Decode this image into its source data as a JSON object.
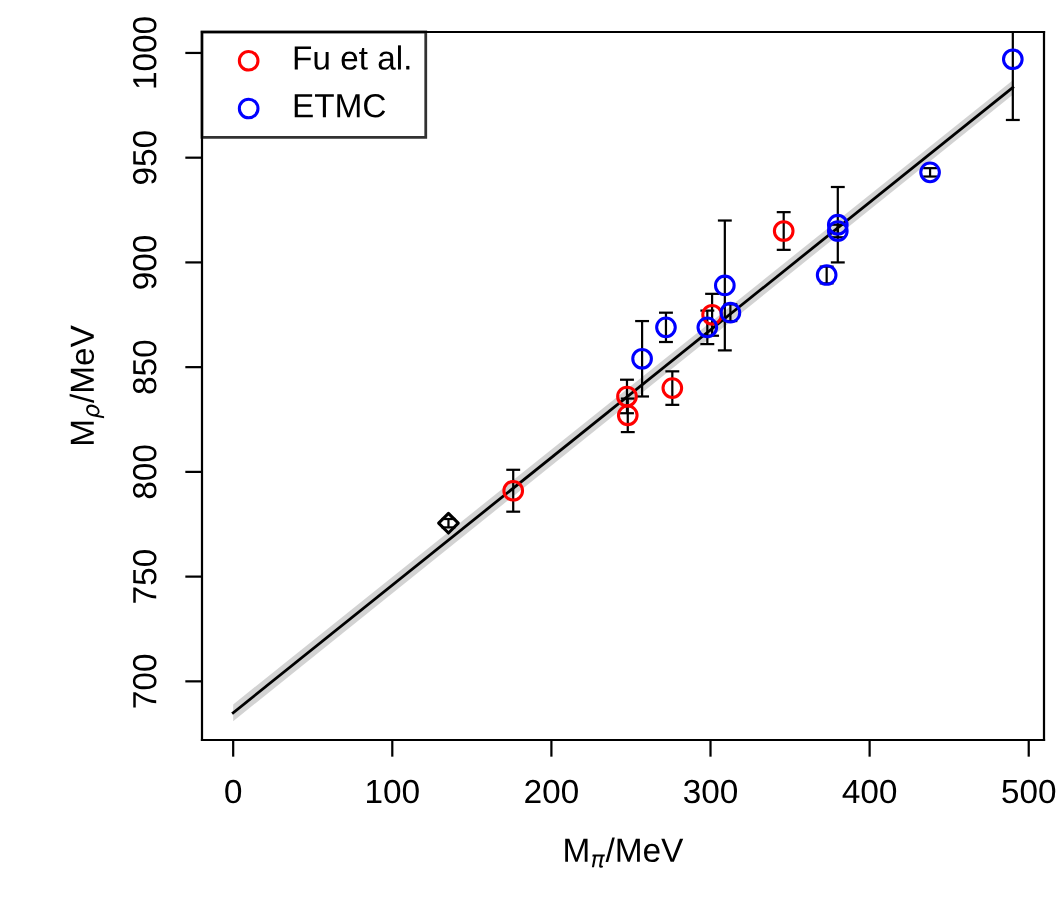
{
  "chart_data": {
    "type": "scatter",
    "xlabel": "M$_{π}$/MeV",
    "ylabel": "M$_{ρ}$/MeV",
    "xlim": [
      -19.6,
      509.6
    ],
    "ylim": [
      672,
      1010
    ],
    "xticks": [
      0,
      100,
      200,
      300,
      400,
      500
    ],
    "yticks": [
      700,
      750,
      800,
      850,
      900,
      950,
      1000
    ],
    "grid": false,
    "legend": "top left",
    "marker": "circle",
    "series": [
      {
        "type": "line",
        "color": "#000000",
        "x": [
          0,
          490
        ],
        "values": [
          685,
          983.5
        ],
        "lower": [
          681,
          980
        ],
        "upper": [
          689,
          987
        ],
        "marker": "none"
      },
      {
        "name": "Fu et al.",
        "color": "#ff0000",
        "x": [
          346,
          301,
          276,
          247.5,
          248,
          176
        ],
        "values": [
          915,
          875,
          840,
          836,
          827,
          791
        ],
        "errors": [
          9,
          10,
          8,
          8,
          8,
          10
        ]
      },
      {
        "name": "ETMC",
        "color": "#0000ff",
        "x": [
          490,
          438,
          380,
          380,
          373,
          309,
          312.5,
          298,
          272,
          257
        ],
        "values": [
          997,
          943,
          918,
          915,
          894,
          889,
          876,
          869,
          869,
          854
        ],
        "errors": [
          29,
          2,
          18,
          3,
          4,
          31,
          4,
          8,
          7,
          18
        ]
      },
      {
        "color": "#000000",
        "x": [
          135.3
        ],
        "values": [
          775.5
        ],
        "errors": [
          2
        ],
        "marker": "diamond"
      }
    ]
  }
}
